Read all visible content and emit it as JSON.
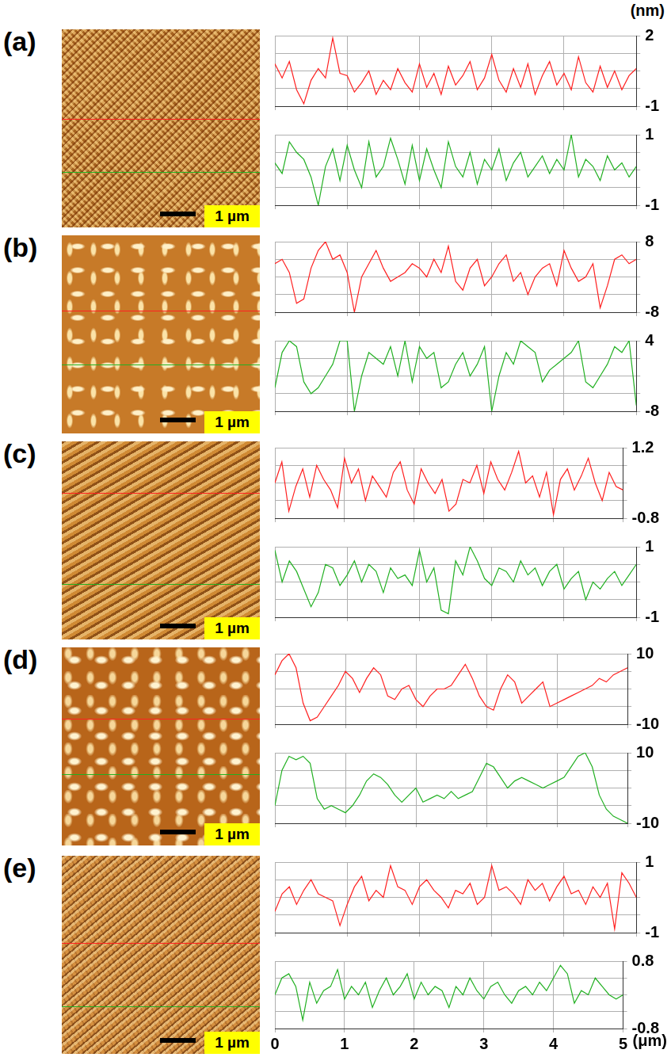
{
  "chart_data": [
    {
      "type": "line",
      "y_label": "(nm)",
      "color": "#ff2020",
      "grid": true,
      "tick_labels": "y",
      "xlim": [
        0,
        5
      ],
      "xticks": [
        0,
        1,
        2,
        3,
        4,
        5
      ],
      "ylim": [
        -1,
        2
      ],
      "yticks": [
        -1,
        2
      ],
      "x": [
        0,
        0.1,
        0.2,
        0.3,
        0.4,
        0.5,
        0.6,
        0.7,
        0.8,
        0.9,
        1,
        1.1,
        1.2,
        1.3,
        1.4,
        1.5,
        1.6,
        1.7,
        1.8,
        1.9,
        2,
        2.1,
        2.2,
        2.3,
        2.4,
        2.5,
        2.6,
        2.7,
        2.8,
        2.9,
        3,
        3.1,
        3.2,
        3.3,
        3.4,
        3.5,
        3.6,
        3.7,
        3.8,
        3.9,
        4,
        4.1,
        4.2,
        4.3,
        4.4,
        4.5,
        4.6,
        4.7,
        4.8,
        4.9,
        5
      ],
      "values": [
        0.8,
        0.2,
        0.9,
        -0.3,
        -0.9,
        0.1,
        0.6,
        0.2,
        1.9,
        0.4,
        0.3,
        -0.4,
        0.0,
        0.5,
        -0.5,
        0.1,
        -0.3,
        0.6,
        0.0,
        -0.4,
        0.8,
        -0.2,
        0.4,
        -0.5,
        0.7,
        -0.1,
        0.3,
        0.9,
        -0.3,
        0.2,
        1.2,
        0.1,
        -0.4,
        0.6,
        -0.2,
        0.8,
        -0.5,
        0.3,
        0.9,
        -0.1,
        0.4,
        -0.3,
        1.1,
        0.0,
        -0.4,
        0.7,
        -0.2,
        0.5,
        -0.3,
        0.3,
        0.6
      ]
    },
    {
      "type": "line",
      "color": "#22b022",
      "grid": true,
      "tick_labels": "y",
      "xlim": [
        0,
        5
      ],
      "xticks": [
        0,
        1,
        2,
        3,
        4,
        5
      ],
      "ylim": [
        -1,
        1
      ],
      "yticks": [
        -1,
        1
      ],
      "x": [
        0,
        0.1,
        0.2,
        0.3,
        0.4,
        0.5,
        0.6,
        0.7,
        0.8,
        0.9,
        1,
        1.1,
        1.2,
        1.3,
        1.4,
        1.5,
        1.6,
        1.7,
        1.8,
        1.9,
        2,
        2.1,
        2.2,
        2.3,
        2.4,
        2.5,
        2.6,
        2.7,
        2.8,
        2.9,
        3,
        3.1,
        3.2,
        3.3,
        3.4,
        3.5,
        3.6,
        3.7,
        3.8,
        3.9,
        4,
        4.1,
        4.2,
        4.3,
        4.4,
        4.5,
        4.6,
        4.7,
        4.8,
        4.9,
        5
      ],
      "values": [
        0.2,
        -0.1,
        0.8,
        0.5,
        0.3,
        -0.2,
        -1.0,
        0.1,
        0.6,
        -0.3,
        0.7,
        0.0,
        -0.5,
        0.8,
        -0.2,
        0.1,
        0.9,
        0.3,
        -0.4,
        0.7,
        -0.3,
        0.6,
        0.0,
        -0.5,
        0.8,
        0.1,
        -0.2,
        0.5,
        -0.4,
        0.3,
        0.0,
        0.6,
        -0.3,
        0.2,
        0.5,
        -0.2,
        0.1,
        0.4,
        -0.1,
        0.3,
        0.0,
        1.0,
        -0.2,
        0.3,
        0.1,
        -0.3,
        0.4,
        0.0,
        0.2,
        -0.2,
        0.1
      ]
    },
    {
      "type": "line",
      "color": "#ff2020",
      "grid": true,
      "tick_labels": "y",
      "xlim": [
        0,
        5
      ],
      "xticks": [
        0,
        1,
        2,
        3,
        4,
        5
      ],
      "ylim": [
        -8,
        8
      ],
      "yticks": [
        -8,
        8
      ],
      "x": [
        0,
        0.1,
        0.2,
        0.3,
        0.4,
        0.5,
        0.6,
        0.7,
        0.8,
        0.9,
        1,
        1.1,
        1.2,
        1.3,
        1.4,
        1.5,
        1.6,
        1.7,
        1.8,
        1.9,
        2,
        2.1,
        2.2,
        2.3,
        2.4,
        2.5,
        2.6,
        2.7,
        2.8,
        2.9,
        3,
        3.1,
        3.2,
        3.3,
        3.4,
        3.5,
        3.6,
        3.7,
        3.8,
        3.9,
        4,
        4.1,
        4.2,
        4.3,
        4.4,
        4.5,
        4.6,
        4.7,
        4.8,
        4.9,
        5
      ],
      "values": [
        3,
        4,
        1,
        -6,
        -5,
        2,
        6,
        8,
        4,
        5,
        1,
        -8,
        0,
        3,
        6,
        2,
        -1,
        0,
        1,
        3,
        2,
        0,
        4,
        1,
        7,
        -1,
        -3,
        2,
        4,
        -2,
        0,
        3,
        5,
        -1,
        1,
        -4,
        0,
        2,
        3,
        -2,
        6,
        2,
        -1,
        0,
        3,
        -7,
        -2,
        4,
        5,
        3,
        4
      ]
    },
    {
      "type": "line",
      "color": "#22b022",
      "grid": true,
      "tick_labels": "y",
      "xlim": [
        0,
        5
      ],
      "xticks": [
        0,
        1,
        2,
        3,
        4,
        5
      ],
      "ylim": [
        -8,
        4
      ],
      "yticks": [
        -8,
        4
      ],
      "x": [
        0,
        0.1,
        0.2,
        0.3,
        0.4,
        0.5,
        0.6,
        0.7,
        0.8,
        0.9,
        1,
        1.1,
        1.2,
        1.3,
        1.4,
        1.5,
        1.6,
        1.7,
        1.8,
        1.9,
        2,
        2.1,
        2.2,
        2.3,
        2.4,
        2.5,
        2.6,
        2.7,
        2.8,
        2.9,
        3,
        3.1,
        3.2,
        3.3,
        3.4,
        3.5,
        3.6,
        3.7,
        3.8,
        3.9,
        4,
        4.1,
        4.2,
        4.3,
        4.4,
        4.5,
        4.6,
        4.7,
        4.8,
        4.9,
        5
      ],
      "values": [
        -4,
        2,
        4,
        3,
        -3,
        -5,
        -4,
        -2,
        0,
        4,
        4,
        -8,
        -2,
        2,
        1,
        0,
        3,
        -2,
        4,
        -3,
        3,
        1,
        2,
        -4,
        -3,
        0,
        2,
        -2,
        0,
        3,
        -8,
        -2,
        2,
        0,
        4,
        3,
        2,
        -3,
        -1,
        0,
        1,
        2,
        4,
        -3,
        -4,
        -2,
        0,
        3,
        2,
        4,
        -7
      ]
    },
    {
      "type": "line",
      "color": "#ff2020",
      "grid": true,
      "tick_labels": "y",
      "xlim": [
        0,
        5
      ],
      "xticks": [
        0,
        1,
        2,
        3,
        4,
        5
      ],
      "ylim": [
        -0.8,
        1.2
      ],
      "yticks": [
        -0.8,
        1.2
      ],
      "x": [
        0,
        0.1,
        0.2,
        0.3,
        0.4,
        0.5,
        0.6,
        0.7,
        0.8,
        0.9,
        1,
        1.1,
        1.2,
        1.3,
        1.4,
        1.5,
        1.6,
        1.7,
        1.8,
        1.9,
        2,
        2.1,
        2.2,
        2.3,
        2.4,
        2.5,
        2.6,
        2.7,
        2.8,
        2.9,
        3,
        3.1,
        3.2,
        3.3,
        3.4,
        3.5,
        3.6,
        3.7,
        3.8,
        3.9,
        4,
        4.1,
        4.2,
        4.3,
        4.4,
        4.5,
        4.6,
        4.7,
        4.8,
        4.9,
        5
      ],
      "values": [
        0.2,
        0.8,
        -0.6,
        0.1,
        0.6,
        -0.2,
        0.7,
        0.3,
        0.0,
        -0.5,
        0.9,
        0.2,
        0.6,
        -0.3,
        0.4,
        0.1,
        -0.2,
        0.5,
        0.8,
        0.0,
        -0.4,
        0.6,
        0.2,
        -0.1,
        0.3,
        -0.6,
        -0.4,
        0.3,
        0.2,
        0.7,
        -0.1,
        0.8,
        0.3,
        0.0,
        0.5,
        1.1,
        0.2,
        0.4,
        -0.2,
        0.5,
        -0.7,
        0.3,
        0.6,
        0.0,
        0.4,
        0.9,
        0.2,
        -0.3,
        0.5,
        0.1,
        0.0
      ]
    },
    {
      "type": "line",
      "color": "#22b022",
      "grid": true,
      "tick_labels": "y",
      "xlim": [
        0,
        5
      ],
      "xticks": [
        0,
        1,
        2,
        3,
        4,
        5
      ],
      "ylim": [
        -1,
        1
      ],
      "yticks": [
        -1,
        1
      ],
      "x": [
        0,
        0.1,
        0.2,
        0.3,
        0.4,
        0.5,
        0.6,
        0.7,
        0.8,
        0.9,
        1,
        1.1,
        1.2,
        1.3,
        1.4,
        1.5,
        1.6,
        1.7,
        1.8,
        1.9,
        2,
        2.1,
        2.2,
        2.3,
        2.4,
        2.5,
        2.6,
        2.7,
        2.8,
        2.9,
        3,
        3.1,
        3.2,
        3.3,
        3.4,
        3.5,
        3.6,
        3.7,
        3.8,
        3.9,
        4,
        4.1,
        4.2,
        4.3,
        4.4,
        4.5,
        4.6,
        4.7,
        4.8,
        4.9,
        5
      ],
      "values": [
        0.9,
        0.0,
        0.6,
        0.3,
        -0.2,
        -0.7,
        -0.3,
        0.5,
        0.4,
        -0.1,
        0.2,
        0.6,
        0.0,
        0.5,
        0.3,
        -0.3,
        0.4,
        0.1,
        0.2,
        -0.1,
        0.9,
        0.0,
        0.4,
        -0.8,
        -0.9,
        0.6,
        0.2,
        1.0,
        0.6,
        0.1,
        -0.1,
        0.4,
        0.3,
        0.0,
        0.6,
        0.2,
        0.4,
        -0.1,
        0.3,
        0.5,
        -0.2,
        0.1,
        0.3,
        -0.5,
        0.0,
        -0.2,
        0.1,
        0.3,
        -0.1,
        0.2,
        0.5
      ]
    },
    {
      "type": "line",
      "color": "#ff2020",
      "grid": true,
      "tick_labels": "y",
      "xlim": [
        0,
        5
      ],
      "xticks": [
        0,
        1,
        2,
        3,
        4,
        5
      ],
      "ylim": [
        -10,
        10
      ],
      "yticks": [
        -10,
        10
      ],
      "x": [
        0,
        0.1,
        0.2,
        0.3,
        0.4,
        0.5,
        0.6,
        0.7,
        0.8,
        0.9,
        1,
        1.1,
        1.2,
        1.3,
        1.4,
        1.5,
        1.6,
        1.7,
        1.8,
        1.9,
        2,
        2.1,
        2.2,
        2.3,
        2.4,
        2.5,
        2.6,
        2.7,
        2.8,
        2.9,
        3,
        3.1,
        3.2,
        3.3,
        3.4,
        3.5,
        3.6,
        3.7,
        3.8,
        3.9,
        4,
        4.1,
        4.2,
        4.3,
        4.4,
        4.5,
        4.6,
        4.7,
        4.8,
        4.9,
        5
      ],
      "values": [
        4,
        8,
        10,
        6,
        -4,
        -9,
        -8,
        -5,
        -2,
        1,
        5,
        3,
        -1,
        3,
        6,
        4,
        -2,
        -3,
        0,
        1,
        -3,
        -5,
        -2,
        0,
        0,
        1,
        4,
        7,
        3,
        -2,
        -5,
        -6,
        0,
        4,
        2,
        -4,
        -2,
        0,
        2,
        -5,
        -4,
        -3,
        -2,
        -1,
        0,
        1,
        3,
        2,
        4,
        5,
        6
      ]
    },
    {
      "type": "line",
      "color": "#22b022",
      "grid": true,
      "tick_labels": "y",
      "xlim": [
        0,
        5
      ],
      "xticks": [
        0,
        1,
        2,
        3,
        4,
        5
      ],
      "ylim": [
        -10,
        10
      ],
      "yticks": [
        -10,
        10
      ],
      "x": [
        0,
        0.1,
        0.2,
        0.3,
        0.4,
        0.5,
        0.6,
        0.7,
        0.8,
        0.9,
        1,
        1.1,
        1.2,
        1.3,
        1.4,
        1.5,
        1.6,
        1.7,
        1.8,
        1.9,
        2,
        2.1,
        2.2,
        2.3,
        2.4,
        2.5,
        2.6,
        2.7,
        2.8,
        2.9,
        3,
        3.1,
        3.2,
        3.3,
        3.4,
        3.5,
        3.6,
        3.7,
        3.8,
        3.9,
        4,
        4.1,
        4.2,
        4.3,
        4.4,
        4.5,
        4.6,
        4.7,
        4.8,
        4.9,
        5
      ],
      "values": [
        -5,
        5,
        9,
        8,
        9,
        7,
        -3,
        -6,
        -5,
        -6,
        -7,
        -5,
        -2,
        2,
        4,
        3,
        1,
        -2,
        -4,
        -2,
        0,
        -4,
        -3,
        -2,
        -3,
        -1,
        -3,
        -2,
        -1,
        3,
        7,
        6,
        3,
        0,
        2,
        3,
        2,
        1,
        0,
        1,
        2,
        3,
        6,
        9,
        10,
        6,
        -2,
        -6,
        -8,
        -9,
        -10
      ]
    },
    {
      "type": "line",
      "color": "#ff2020",
      "grid": true,
      "tick_labels": "y",
      "xlim": [
        0,
        5
      ],
      "xticks": [
        0,
        1,
        2,
        3,
        4,
        5
      ],
      "ylim": [
        -1,
        1
      ],
      "yticks": [
        -1,
        1
      ],
      "x": [
        0,
        0.1,
        0.2,
        0.3,
        0.4,
        0.5,
        0.6,
        0.7,
        0.8,
        0.9,
        1,
        1.1,
        1.2,
        1.3,
        1.4,
        1.5,
        1.6,
        1.7,
        1.8,
        1.9,
        2,
        2.1,
        2.2,
        2.3,
        2.4,
        2.5,
        2.6,
        2.7,
        2.8,
        2.9,
        3,
        3.1,
        3.2,
        3.3,
        3.4,
        3.5,
        3.6,
        3.7,
        3.8,
        3.9,
        4,
        4.1,
        4.2,
        4.3,
        4.4,
        4.5,
        4.6,
        4.7,
        4.8,
        4.9,
        5
      ],
      "values": [
        -0.4,
        0.1,
        0.3,
        -0.2,
        0.2,
        0.5,
        0.1,
        0.0,
        -0.1,
        -0.8,
        -0.2,
        0.3,
        0.6,
        -0.1,
        0.2,
        0.0,
        0.9,
        0.3,
        0.2,
        -0.2,
        0.3,
        0.5,
        0.2,
        0.0,
        -0.3,
        0.2,
        0.1,
        0.4,
        -0.2,
        0.0,
        0.9,
        0.2,
        0.3,
        0.1,
        -0.2,
        0.5,
        0.2,
        0.4,
        -0.1,
        0.3,
        0.6,
        0.1,
        0.2,
        -0.2,
        0.3,
        0.0,
        0.4,
        -0.9,
        0.7,
        0.4,
        0.0
      ]
    },
    {
      "type": "line",
      "x_label": "(μm)",
      "color": "#22b022",
      "grid": true,
      "tick_labels": true,
      "xlim": [
        0,
        5
      ],
      "xticks": [
        0,
        1,
        2,
        3,
        4,
        5
      ],
      "ylim": [
        -0.8,
        0.8
      ],
      "yticks": [
        -0.8,
        0.8
      ],
      "x": [
        0,
        0.1,
        0.2,
        0.3,
        0.4,
        0.5,
        0.6,
        0.7,
        0.8,
        0.9,
        1,
        1.1,
        1.2,
        1.3,
        1.4,
        1.5,
        1.6,
        1.7,
        1.8,
        1.9,
        2,
        2.1,
        2.2,
        2.3,
        2.4,
        2.5,
        2.6,
        2.7,
        2.8,
        2.9,
        3,
        3.1,
        3.2,
        3.3,
        3.4,
        3.5,
        3.6,
        3.7,
        3.8,
        3.9,
        4,
        4.1,
        4.2,
        4.3,
        4.4,
        4.5,
        4.6,
        4.7,
        4.8,
        4.9,
        5
      ],
      "values": [
        0.0,
        0.4,
        0.5,
        0.2,
        -0.6,
        0.3,
        -0.2,
        0.1,
        0.2,
        0.6,
        -0.1,
        0.2,
        0.0,
        0.3,
        -0.3,
        0.1,
        0.4,
        0.0,
        0.2,
        0.5,
        -0.1,
        0.3,
        0.0,
        0.2,
        0.1,
        -0.3,
        0.2,
        0.0,
        0.4,
        0.1,
        -0.1,
        0.2,
        0.3,
        0.0,
        -0.2,
        0.1,
        0.2,
        0.0,
        0.3,
        0.1,
        0.4,
        0.7,
        0.5,
        -0.2,
        0.1,
        0.0,
        0.4,
        0.2,
        0.0,
        -0.1,
        0.0
      ]
    }
  ],
  "panels": [
    {
      "label": "(a)",
      "scale_bar": "1 µm"
    },
    {
      "label": "(b)",
      "scale_bar": "1 µm"
    },
    {
      "label": "(c)",
      "scale_bar": "1 µm"
    },
    {
      "label": "(d)",
      "scale_bar": "1 µm"
    },
    {
      "label": "(e)",
      "scale_bar": "1 µm"
    }
  ]
}
